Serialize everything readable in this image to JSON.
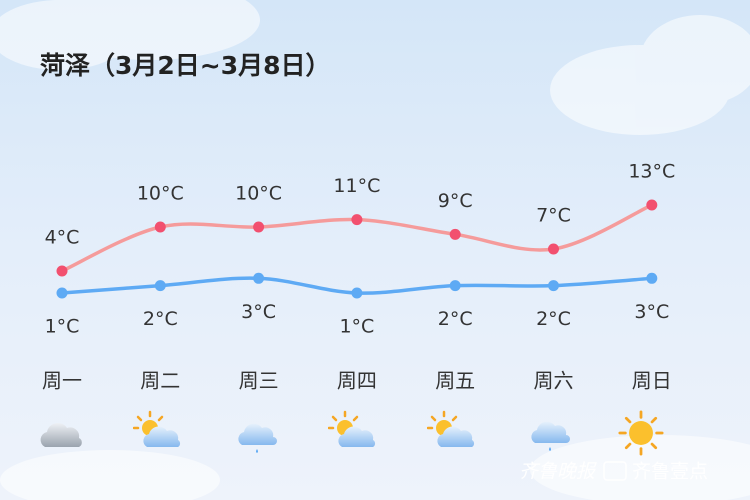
{
  "chart_data": {
    "type": "line",
    "title": "菏泽（3月2日~3月8日）",
    "categories": [
      "周一",
      "周二",
      "周三",
      "周四",
      "周五",
      "周六",
      "周日"
    ],
    "series": [
      {
        "color": "#f59b9b",
        "dot_color": "#f2506f",
        "label_position": "above",
        "values": [
          4,
          10,
          10,
          11,
          9,
          7,
          13
        ],
        "value_labels": [
          "4°C",
          "10°C",
          "10°C",
          "11°C",
          "9°C",
          "7°C",
          "13°C"
        ]
      },
      {
        "color": "#5eaaf4",
        "dot_color": "#5eaaf4",
        "label_position": "below",
        "values": [
          1,
          2,
          3,
          1,
          2,
          2,
          3
        ],
        "value_labels": [
          "1°C",
          "2°C",
          "3°C",
          "1°C",
          "2°C",
          "2°C",
          "3°C"
        ]
      }
    ],
    "annotations": [
      "齐鲁晚报",
      "齐鲁壹点"
    ]
  }
}
